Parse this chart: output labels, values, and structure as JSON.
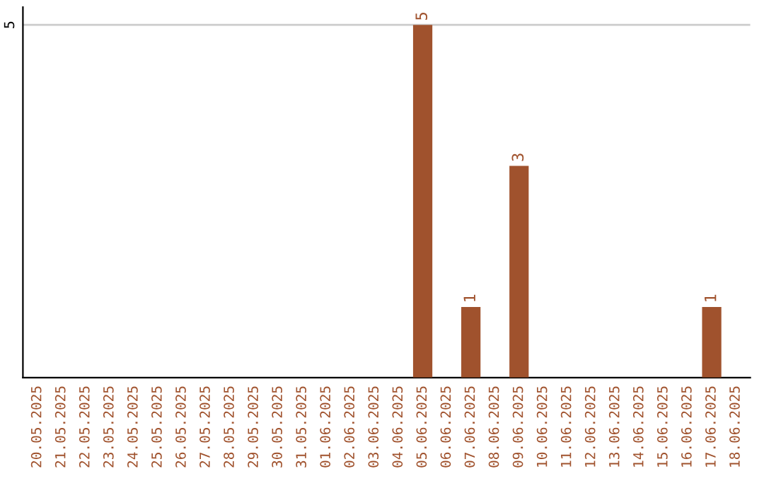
{
  "chart_data": {
    "type": "bar",
    "categories": [
      "20.05.2025",
      "21.05.2025",
      "22.05.2025",
      "23.05.2025",
      "24.05.2025",
      "25.05.2025",
      "26.05.2025",
      "27.05.2025",
      "28.05.2025",
      "29.05.2025",
      "30.05.2025",
      "31.05.2025",
      "01.06.2025",
      "02.06.2025",
      "03.06.2025",
      "04.06.2025",
      "05.06.2025",
      "06.06.2025",
      "07.06.2025",
      "08.06.2025",
      "09.06.2025",
      "10.06.2025",
      "11.06.2025",
      "12.06.2025",
      "13.06.2025",
      "14.06.2025",
      "15.06.2025",
      "16.06.2025",
      "17.06.2025",
      "18.06.2025"
    ],
    "values": [
      null,
      null,
      null,
      null,
      null,
      null,
      null,
      null,
      null,
      null,
      null,
      null,
      null,
      null,
      null,
      null,
      5,
      null,
      1,
      null,
      3,
      null,
      null,
      null,
      null,
      null,
      null,
      null,
      1,
      null
    ],
    "value_labels": [
      null,
      null,
      null,
      null,
      null,
      null,
      null,
      null,
      null,
      null,
      null,
      null,
      null,
      null,
      null,
      null,
      "5",
      null,
      "1",
      null,
      "3",
      null,
      null,
      null,
      null,
      null,
      null,
      null,
      "1",
      null
    ],
    "color": "#a0522d",
    "ref_lines": [
      {
        "axis": "y",
        "value": 5,
        "label": "5",
        "color": "#cccccc"
      }
    ]
  }
}
